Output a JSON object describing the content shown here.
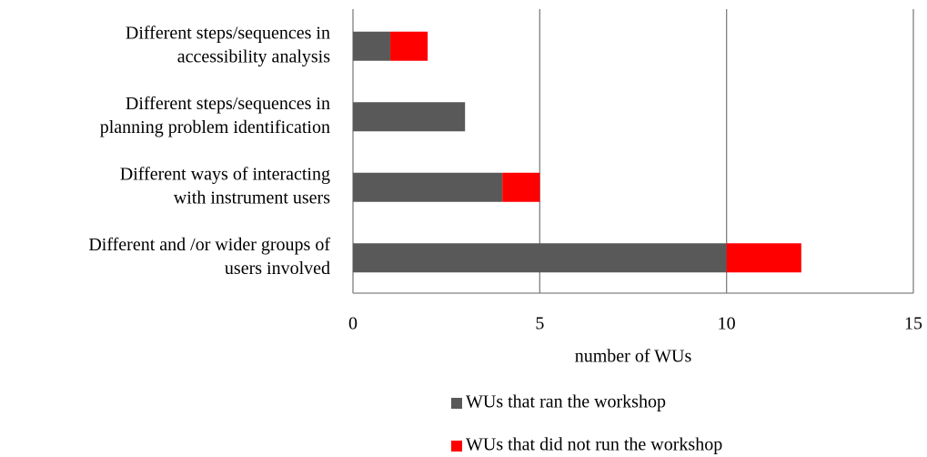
{
  "chart_data": {
    "type": "stacked-bar-horizontal",
    "categories": [
      [
        "Different steps/sequences in",
        "accessibility analysis"
      ],
      [
        "Different steps/sequences in",
        "planning problem identification"
      ],
      [
        "Different ways of interacting",
        "with instrument users"
      ],
      [
        "Different and /or wider groups of",
        "users involved"
      ]
    ],
    "series": [
      {
        "name": "WUs that ran the workshop",
        "color": "#595959",
        "values": [
          1,
          3,
          4,
          10
        ]
      },
      {
        "name": "WUs that did not run the workshop",
        "color": "#ff0000",
        "values": [
          1,
          0,
          1,
          2
        ]
      }
    ],
    "xlabel": "number of WUs",
    "xlim": [
      0,
      15
    ],
    "xticks": [
      0,
      5,
      10,
      15
    ],
    "grid": true,
    "legend": "bottom"
  }
}
